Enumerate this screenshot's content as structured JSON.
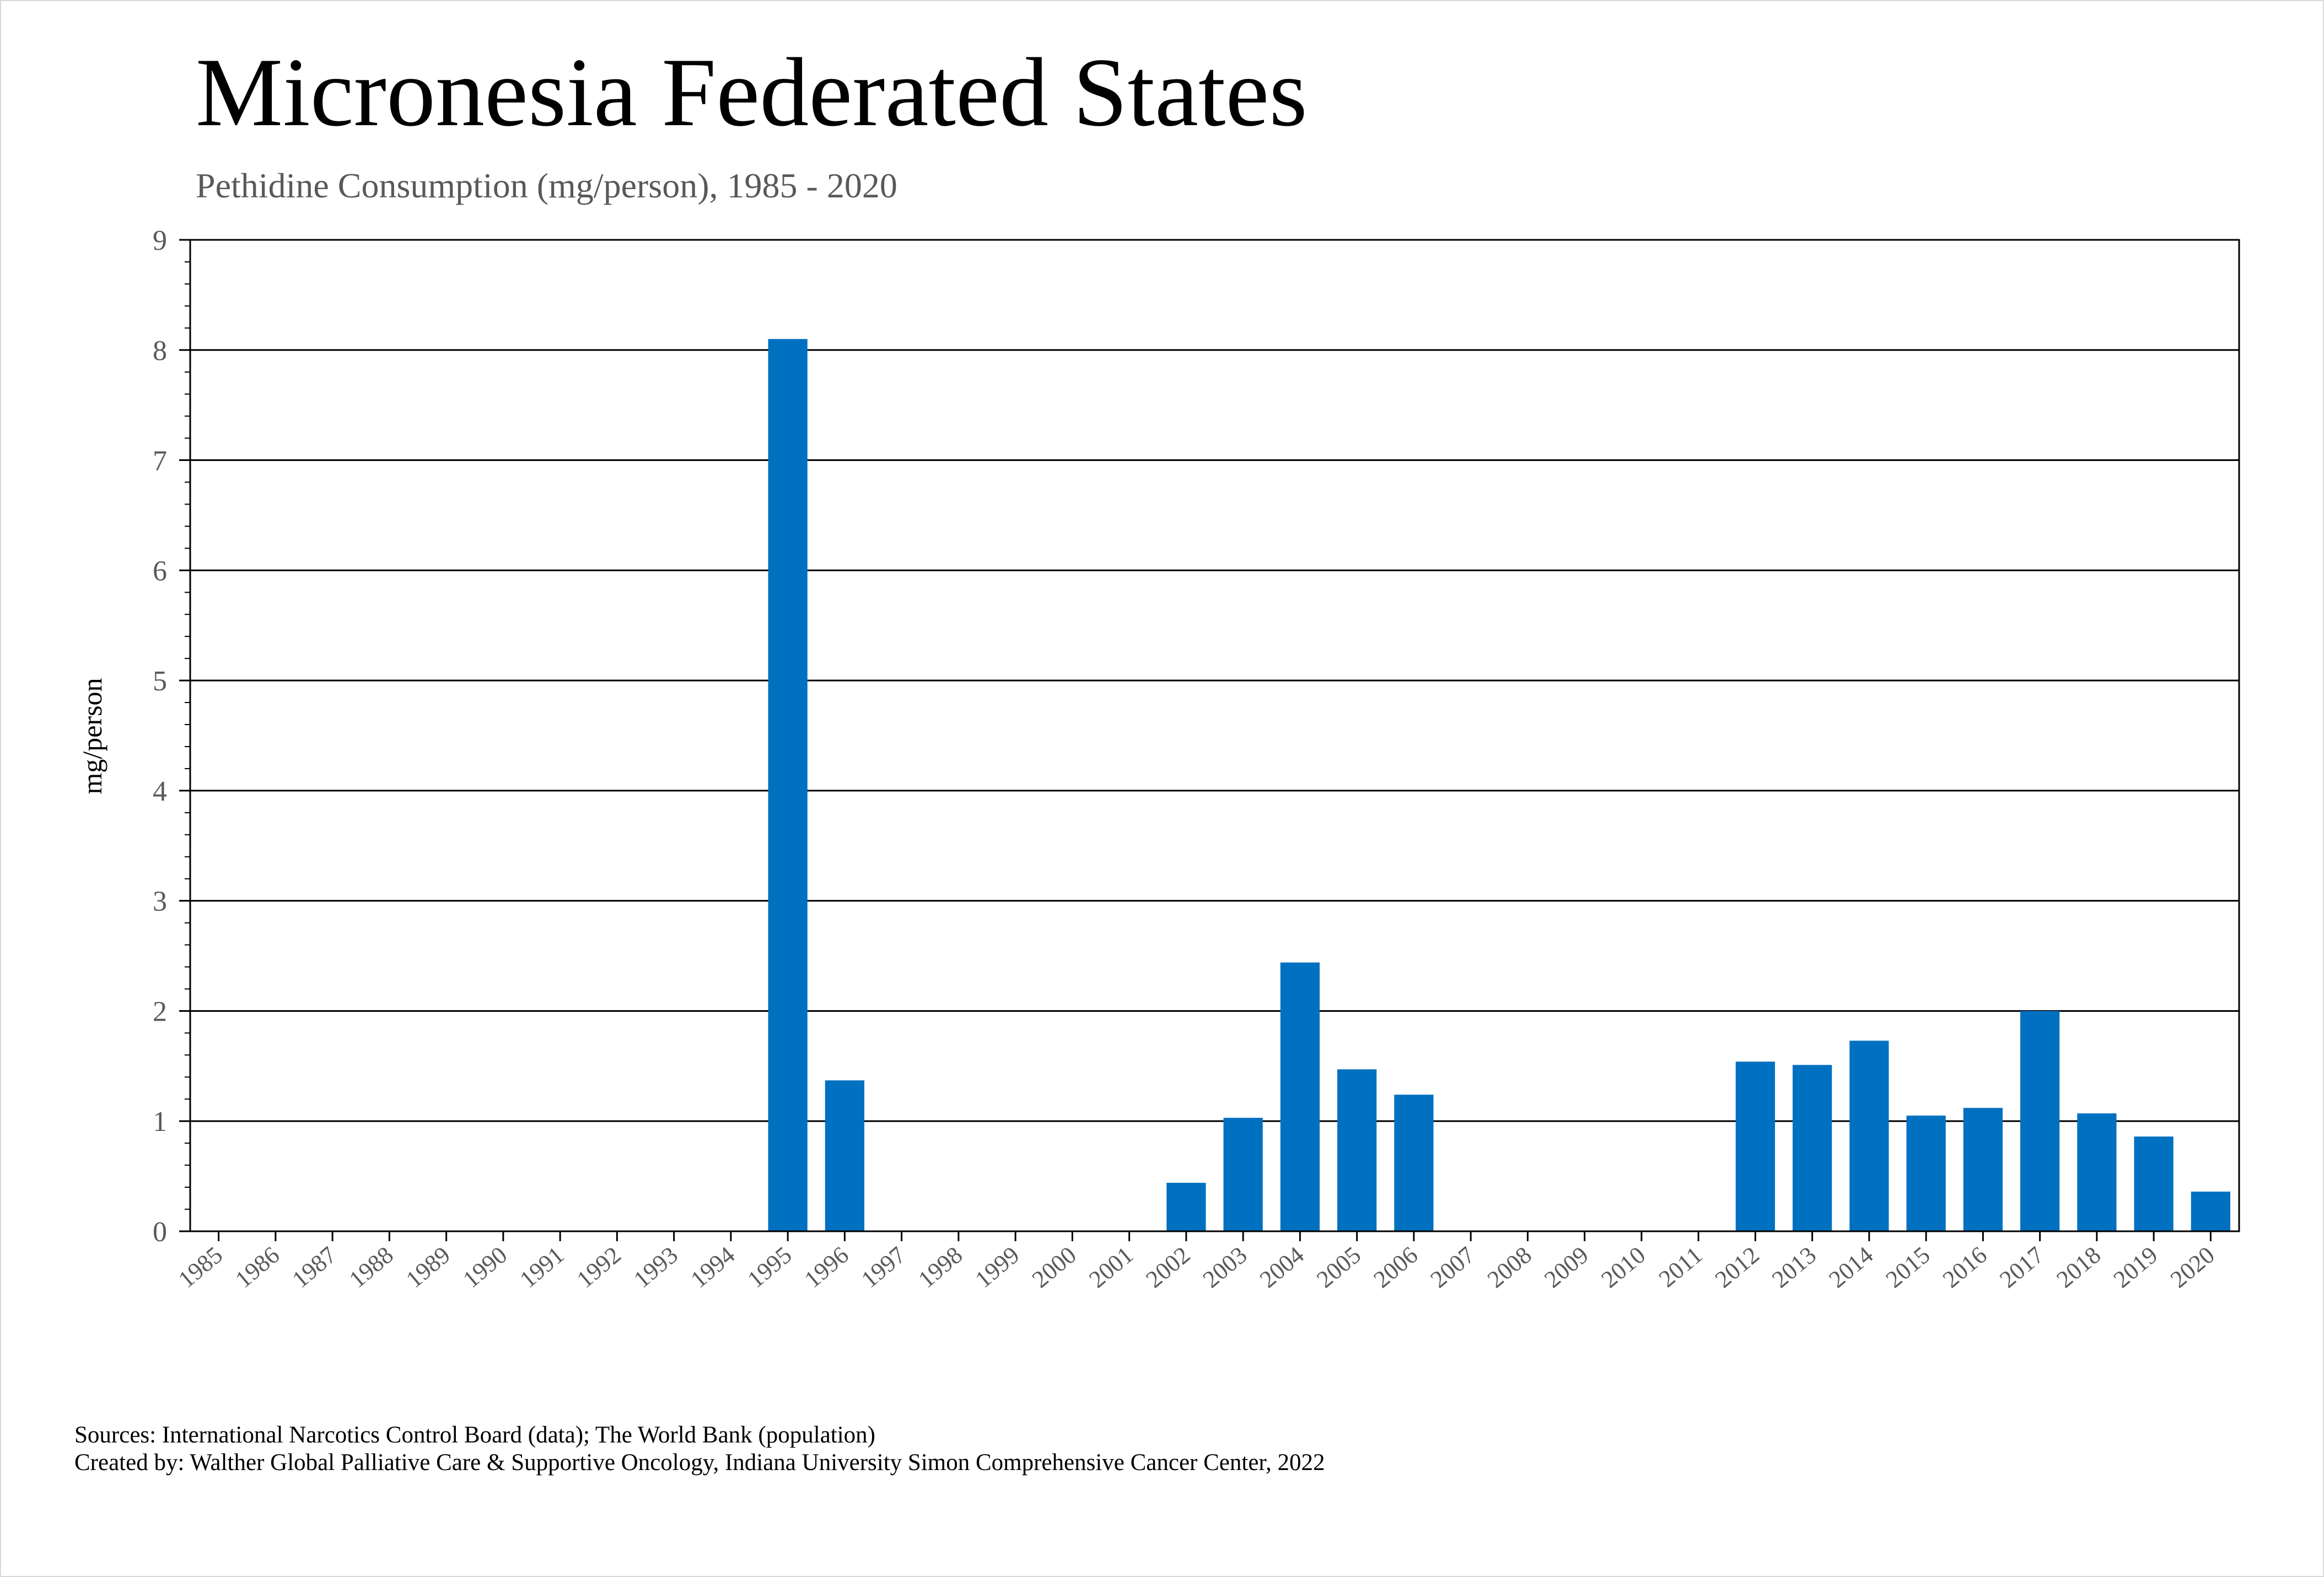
{
  "title": "Micronesia Federated States",
  "subtitle": "Pethidine Consumption (mg/person), 1985 - 2020",
  "footer": {
    "source": "Sources: International Narcotics Control Board (data); The World Bank (population)",
    "credit": "Created by: Walther Global Palliative Care & Supportive Oncology, Indiana University Simon Comprehensive Cancer Center, 2022"
  },
  "colors": {
    "bar": "#0070C0",
    "grid": "#000000",
    "text": "#595959"
  },
  "chart_data": {
    "type": "bar",
    "title": "Micronesia Federated States",
    "subtitle": "Pethidine Consumption (mg/person), 1985 - 2020",
    "xlabel": "",
    "ylabel": "mg/person",
    "ylim": [
      0,
      9
    ],
    "yticks": [
      0,
      1,
      2,
      3,
      4,
      5,
      6,
      7,
      8,
      9
    ],
    "grid": true,
    "legend": "none",
    "categories": [
      "1985",
      "1986",
      "1987",
      "1988",
      "1989",
      "1990",
      "1991",
      "1992",
      "1993",
      "1994",
      "1995",
      "1996",
      "1997",
      "1998",
      "1999",
      "2000",
      "2001",
      "2002",
      "2003",
      "2004",
      "2005",
      "2006",
      "2007",
      "2008",
      "2009",
      "2010",
      "2011",
      "2012",
      "2013",
      "2014",
      "2015",
      "2016",
      "2017",
      "2018",
      "2019",
      "2020"
    ],
    "values": [
      0,
      0,
      0,
      0,
      0,
      0,
      0,
      0,
      0,
      0,
      8.1,
      1.37,
      0,
      0,
      0,
      0,
      0,
      0.44,
      1.03,
      2.44,
      1.47,
      1.24,
      0,
      0,
      0,
      0,
      0,
      1.54,
      1.51,
      1.73,
      1.05,
      1.12,
      2.0,
      1.07,
      0.86,
      0.36
    ]
  }
}
